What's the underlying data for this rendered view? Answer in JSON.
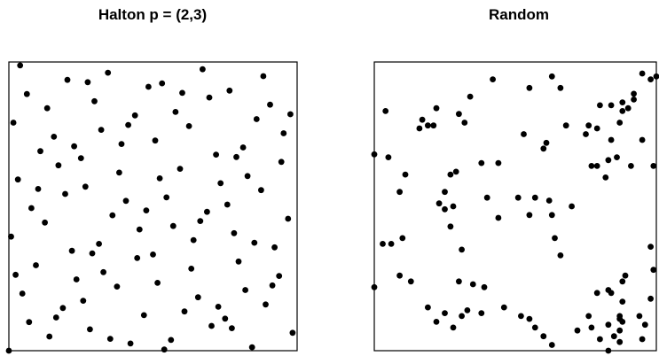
{
  "chart_data": [
    {
      "type": "scatter",
      "title": "Halton p = (2,3)",
      "xlabel": "",
      "ylabel": "",
      "xlim": [
        0,
        1
      ],
      "ylim": [
        0,
        1
      ],
      "grid": false,
      "axes_ticks": false,
      "series": [
        {
          "points": [
            [
              0.0,
              0.0
            ],
            [
              0.5,
              0.333
            ],
            [
              0.25,
              0.667
            ],
            [
              0.75,
              0.111
            ],
            [
              0.125,
              0.444
            ],
            [
              0.625,
              0.778
            ],
            [
              0.375,
              0.222
            ],
            [
              0.875,
              0.556
            ],
            [
              0.0625,
              0.889
            ],
            [
              0.5625,
              0.037
            ],
            [
              0.3125,
              0.37
            ],
            [
              0.8125,
              0.704
            ],
            [
              0.1875,
              0.148
            ],
            [
              0.6875,
              0.481
            ],
            [
              0.4375,
              0.815
            ],
            [
              0.9375,
              0.259
            ],
            [
              0.03125,
              0.593
            ],
            [
              0.53125,
              0.926
            ],
            [
              0.28125,
              0.074
            ],
            [
              0.78125,
              0.407
            ],
            [
              0.15625,
              0.741
            ],
            [
              0.65625,
              0.185
            ],
            [
              0.40625,
              0.519
            ],
            [
              0.90625,
              0.852
            ],
            [
              0.09375,
              0.296
            ],
            [
              0.59375,
              0.63
            ],
            [
              0.34375,
              0.963
            ],
            [
              0.84375,
              0.012
            ],
            [
              0.21875,
              0.346
            ],
            [
              0.71875,
              0.679
            ],
            [
              0.46875,
              0.123
            ],
            [
              0.96875,
              0.457
            ],
            [
              0.015625,
              0.79
            ],
            [
              0.515625,
              0.235
            ],
            [
              0.265625,
              0.568
            ],
            [
              0.765625,
              0.901
            ],
            [
              0.140625,
              0.049
            ],
            [
              0.640625,
              0.383
            ],
            [
              0.390625,
              0.716
            ],
            [
              0.890625,
              0.16
            ],
            [
              0.078125,
              0.494
            ],
            [
              0.578125,
              0.827
            ],
            [
              0.328125,
              0.272
            ],
            [
              0.828125,
              0.605
            ],
            [
              0.203125,
              0.938
            ],
            [
              0.703125,
              0.086
            ],
            [
              0.453125,
              0.42
            ],
            [
              0.953125,
              0.753
            ],
            [
              0.046875,
              0.198
            ],
            [
              0.546875,
              0.531
            ],
            [
              0.296875,
              0.864
            ],
            [
              0.796875,
              0.309
            ],
            [
              0.171875,
              0.642
            ],
            [
              0.671875,
              0.975
            ],
            [
              0.421875,
              0.025
            ],
            [
              0.921875,
              0.358
            ],
            [
              0.109375,
              0.691
            ],
            [
              0.609375,
              0.136
            ],
            [
              0.359375,
              0.469
            ],
            [
              0.859375,
              0.802
            ],
            [
              0.234375,
              0.247
            ],
            [
              0.734375,
              0.58
            ],
            [
              0.484375,
              0.914
            ],
            [
              0.984375,
              0.062
            ],
            [
              0.0078,
              0.395
            ],
            [
              0.5078,
              0.728
            ],
            [
              0.2578,
              0.173
            ],
            [
              0.7578,
              0.506
            ],
            [
              0.1328,
              0.84
            ],
            [
              0.6328,
              0.284
            ],
            [
              0.3828,
              0.617
            ],
            [
              0.8828,
              0.951
            ],
            [
              0.0703,
              0.099
            ],
            [
              0.5703,
              0.432
            ],
            [
              0.3203,
              0.765
            ],
            [
              0.8203,
              0.21
            ],
            [
              0.1953,
              0.543
            ],
            [
              0.6953,
              0.877
            ],
            [
              0.4453,
              0.321
            ],
            [
              0.9453,
              0.654
            ],
            [
              0.0391,
              0.988
            ],
            [
              0.5391,
              0.004
            ],
            [
              0.2891,
              0.337
            ],
            [
              0.7891,
              0.671
            ],
            [
              0.1641,
              0.115
            ],
            [
              0.6641,
              0.449
            ],
            [
              0.4141,
              0.782
            ],
            [
              0.9141,
              0.226
            ],
            [
              0.1016,
              0.56
            ],
            [
              0.6016,
              0.893
            ],
            [
              0.3516,
              0.041
            ],
            [
              0.8516,
              0.374
            ],
            [
              0.2266,
              0.708
            ],
            [
              0.7266,
              0.152
            ],
            [
              0.4766,
              0.486
            ],
            [
              0.9766,
              0.819
            ],
            [
              0.0234,
              0.263
            ],
            [
              0.5234,
              0.597
            ],
            [
              0.2734,
              0.93
            ],
            [
              0.7734,
              0.078
            ]
          ]
        }
      ]
    },
    {
      "type": "scatter",
      "title": "Random",
      "xlabel": "",
      "ylabel": "",
      "xlim": [
        0,
        1
      ],
      "ylim": [
        0,
        1
      ],
      "grid": false,
      "axes_ticks": false,
      "series": [
        {
          "points": [
            [
              0.0,
              0.68
            ],
            [
              0.05,
              0.67
            ],
            [
              0.04,
              0.83
            ],
            [
              0.17,
              0.8
            ],
            [
              0.16,
              0.77
            ],
            [
              0.19,
              0.78
            ],
            [
              0.21,
              0.78
            ],
            [
              0.22,
              0.84
            ],
            [
              0.3,
              0.82
            ],
            [
              0.32,
              0.79
            ],
            [
              0.34,
              0.88
            ],
            [
              0.42,
              0.94
            ],
            [
              0.55,
              0.91
            ],
            [
              0.63,
              0.95
            ],
            [
              0.66,
              0.91
            ],
            [
              0.8,
              0.85
            ],
            [
              0.84,
              0.85
            ],
            [
              0.88,
              0.86
            ],
            [
              0.92,
              0.87
            ],
            [
              0.95,
              0.96
            ],
            [
              0.98,
              0.94
            ],
            [
              1.0,
              0.95
            ],
            [
              0.92,
              0.89
            ],
            [
              0.9,
              0.84
            ],
            [
              0.87,
              0.79
            ],
            [
              0.88,
              0.83
            ],
            [
              0.84,
              0.73
            ],
            [
              0.86,
              0.67
            ],
            [
              0.91,
              0.64
            ],
            [
              0.95,
              0.73
            ],
            [
              0.99,
              0.64
            ],
            [
              0.76,
              0.78
            ],
            [
              0.75,
              0.75
            ],
            [
              0.79,
              0.77
            ],
            [
              0.77,
              0.64
            ],
            [
              0.79,
              0.64
            ],
            [
              0.83,
              0.66
            ],
            [
              0.82,
              0.6
            ],
            [
              0.68,
              0.78
            ],
            [
              0.61,
              0.72
            ],
            [
              0.6,
              0.7
            ],
            [
              0.53,
              0.75
            ],
            [
              0.44,
              0.65
            ],
            [
              0.38,
              0.65
            ],
            [
              0.27,
              0.61
            ],
            [
              0.25,
              0.55
            ],
            [
              0.29,
              0.62
            ],
            [
              0.11,
              0.61
            ],
            [
              0.09,
              0.55
            ],
            [
              0.23,
              0.51
            ],
            [
              0.25,
              0.49
            ],
            [
              0.28,
              0.5
            ],
            [
              0.27,
              0.43
            ],
            [
              0.31,
              0.35
            ],
            [
              0.4,
              0.53
            ],
            [
              0.44,
              0.46
            ],
            [
              0.51,
              0.53
            ],
            [
              0.55,
              0.47
            ],
            [
              0.57,
              0.53
            ],
            [
              0.62,
              0.52
            ],
            [
              0.63,
              0.47
            ],
            [
              0.64,
              0.39
            ],
            [
              0.66,
              0.33
            ],
            [
              0.7,
              0.5
            ],
            [
              0.98,
              0.36
            ],
            [
              0.03,
              0.37
            ],
            [
              0.06,
              0.37
            ],
            [
              0.1,
              0.39
            ],
            [
              0.09,
              0.26
            ],
            [
              0.13,
              0.24
            ],
            [
              0.0,
              0.22
            ],
            [
              0.3,
              0.24
            ],
            [
              0.35,
              0.23
            ],
            [
              0.39,
              0.22
            ],
            [
              0.19,
              0.15
            ],
            [
              0.22,
              0.1
            ],
            [
              0.25,
              0.13
            ],
            [
              0.28,
              0.08
            ],
            [
              0.31,
              0.12
            ],
            [
              0.33,
              0.14
            ],
            [
              0.38,
              0.13
            ],
            [
              0.46,
              0.15
            ],
            [
              0.52,
              0.12
            ],
            [
              0.55,
              0.11
            ],
            [
              0.57,
              0.08
            ],
            [
              0.6,
              0.05
            ],
            [
              0.63,
              0.02
            ],
            [
              0.72,
              0.07
            ],
            [
              0.8,
              0.04
            ],
            [
              0.83,
              0.09
            ],
            [
              0.87,
              0.11
            ],
            [
              0.88,
              0.1
            ],
            [
              0.87,
              0.07
            ],
            [
              0.85,
              0.05
            ],
            [
              0.83,
              0.0
            ],
            [
              0.95,
              0.04
            ],
            [
              0.96,
              0.09
            ],
            [
              0.99,
              0.28
            ],
            [
              0.88,
              0.24
            ],
            [
              0.89,
              0.26
            ],
            [
              0.87,
              0.12
            ],
            [
              0.94,
              0.12
            ],
            [
              0.87,
              0.03
            ],
            [
              0.76,
              0.12
            ],
            [
              0.79,
              0.2
            ],
            [
              0.83,
              0.21
            ],
            [
              0.84,
              0.2
            ],
            [
              0.88,
              0.17
            ],
            [
              0.98,
              0.18
            ],
            [
              0.77,
              0.08
            ]
          ]
        }
      ]
    }
  ]
}
